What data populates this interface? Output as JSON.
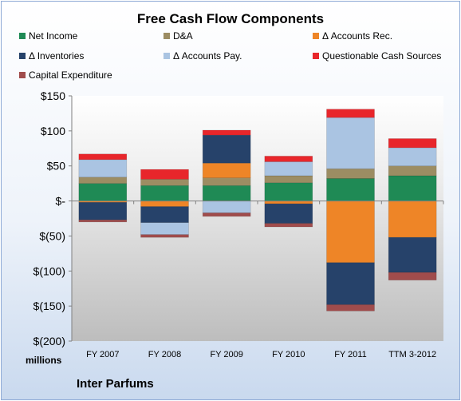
{
  "chart_data": {
    "type": "bar",
    "stacked": true,
    "title": "Free Cash Flow Components",
    "categories": [
      "FY 2007",
      "FY 2008",
      "FY 2009",
      "FY 2010",
      "FY 2011",
      "TTM 3-2012"
    ],
    "ylim": [
      -200,
      150
    ],
    "yticks": [
      150,
      100,
      50,
      0,
      -50,
      -100,
      -150,
      -200
    ],
    "ytick_labels": [
      "$150",
      "$100",
      "$50",
      "$-",
      "$(50)",
      "$(100)",
      "$(150)",
      "$(200)"
    ],
    "ylabel": "millions",
    "grid": false,
    "legend_position": "top",
    "series": [
      {
        "name": "Net Income",
        "color": "#1f8a55",
        "values": [
          25,
          22,
          22,
          26,
          32,
          36
        ]
      },
      {
        "name": "D&A",
        "color": "#9c8d63",
        "values": [
          9,
          9,
          11,
          10,
          14,
          14
        ]
      },
      {
        "name": "Δ Accounts Rec.",
        "color": "#ee8527",
        "values": [
          -2,
          -8,
          21,
          -4,
          -88,
          -52
        ]
      },
      {
        "name": "Δ Inventories",
        "color": "#26426a",
        "values": [
          -25,
          -23,
          40,
          -28,
          -60,
          -50
        ]
      },
      {
        "name": "Δ Accounts Pay.",
        "color": "#aac4e2",
        "values": [
          25,
          -17,
          -17,
          20,
          73,
          26
        ]
      },
      {
        "name": "Questionable Cash Sources",
        "color": "#e8262b",
        "values": [
          8,
          14,
          7,
          8,
          12,
          13
        ]
      },
      {
        "name": "Capital Expenditure",
        "color": "#a04c4c",
        "values": [
          -3,
          -4,
          -5,
          -5,
          -9,
          -11
        ]
      }
    ]
  },
  "legend": [
    {
      "label": "Net Income",
      "color": "#1f8a55"
    },
    {
      "label": "D&A",
      "color": "#9c8d63"
    },
    {
      "label": "Δ Accounts Rec.",
      "color": "#ee8527"
    },
    {
      "label": "Δ Inventories",
      "color": "#26426a"
    },
    {
      "label": "Δ Accounts Pay.",
      "color": "#aac4e2"
    },
    {
      "label": "Questionable Cash Sources",
      "color": "#e8262b"
    },
    {
      "label": "Capital Expenditure",
      "color": "#a04c4c"
    }
  ],
  "footer": {
    "company": "Inter Parfums"
  }
}
